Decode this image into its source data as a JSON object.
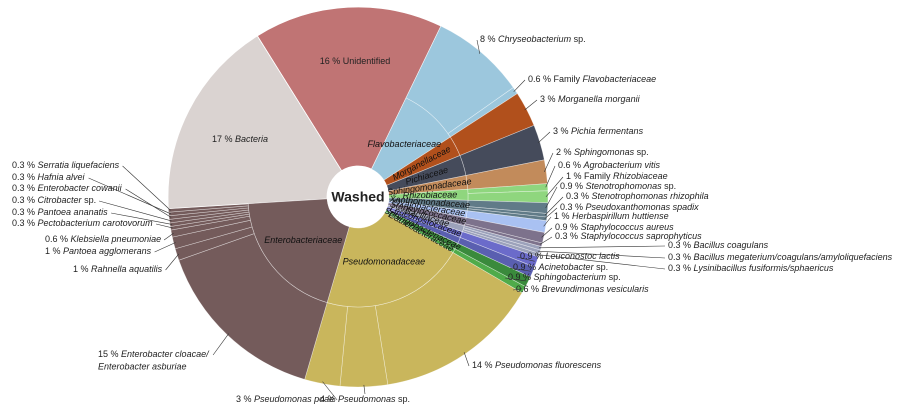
{
  "chart_data": {
    "type": "sunburst",
    "center_label": "Washed",
    "segments": [
      {
        "value": 16,
        "value_label": "16 %",
        "label": "Unidentified",
        "italic": false,
        "color": "#c07474"
      },
      {
        "value": 8,
        "value_label": "8 %",
        "label": "Chryseobacterium",
        "suffix": "sp.",
        "italic": true,
        "family": "Flavobacteriaceae",
        "color": "#9cc7dd"
      },
      {
        "value": 0.6,
        "value_label": "0.6 %",
        "prefix": "Family",
        "label": "Flavobacteriaceae",
        "italic": true,
        "color": "#9cc7dd"
      },
      {
        "value": 3,
        "value_label": "3 %",
        "label": "Morganella morganii",
        "italic": true,
        "family": "Morganellaceae",
        "color": "#b1501c"
      },
      {
        "value": 3,
        "value_label": "3 %",
        "label": "Pichia fermentans",
        "italic": true,
        "family": "Pichiaceae",
        "color": "#454b5b"
      },
      {
        "value": 2,
        "value_label": "2 %",
        "label": "Sphingomonas",
        "suffix": "sp.",
        "italic": true,
        "family": "Sphingomonadaceae",
        "color": "#c28b5b"
      },
      {
        "value": 0.6,
        "value_label": "0.6 %",
        "label": "Agrobacterium vitis",
        "italic": true,
        "family": "Rhizobiaceae",
        "color": "#8fd67e"
      },
      {
        "value": 1,
        "value_label": "1 %",
        "prefix": "Family",
        "label": "Rhizobiaceae",
        "italic": true,
        "color": "#8fd67e"
      },
      {
        "value": 0.9,
        "value_label": "0.9 %",
        "label": "Stenotrophomonas",
        "suffix": "sp.",
        "italic": true,
        "family": "Xanthomonadaceae",
        "color": "#617b88"
      },
      {
        "value": 0.3,
        "value_label": "0.3 %",
        "label": "Stenotrophomonas rhizophila",
        "italic": true,
        "color": "#617b88"
      },
      {
        "value": 0.3,
        "value_label": "0.3 %",
        "label": "Pseudoxanthomonas spadix",
        "italic": true,
        "color": "#617b88"
      },
      {
        "value": 1,
        "value_label": "1 %",
        "label": "Herbaspirillum huttiense",
        "italic": true,
        "family": "Oxalobacteraceae",
        "color": "#a9c1f2"
      },
      {
        "value": 0.9,
        "value_label": "0.9 %",
        "label": "Staphylococcus aureus",
        "italic": true,
        "family": "Staphylococcaceae",
        "color": "#7d728c"
      },
      {
        "value": 0.3,
        "value_label": "0.3 %",
        "label": "Staphylococcus saprophyticus",
        "italic": true,
        "color": "#7d728c"
      },
      {
        "value": 0.3,
        "value_label": "0.3 %",
        "label": "Bacillus coagulans",
        "italic": true,
        "family": "Bacillaceae",
        "color": "#9ca2bb"
      },
      {
        "value": 0.3,
        "value_label": "0.3 %",
        "label": "Bacillus megaterium/coagulans/amyloliquefaciens",
        "italic": true,
        "color": "#9ca2bb"
      },
      {
        "value": 0.3,
        "value_label": "0.3 %",
        "label": "Lysinibacillus fusiformis/sphaericus",
        "italic": true,
        "color": "#9ca2bb"
      },
      {
        "value": 0.9,
        "value_label": "0.9 %",
        "label": "Leuconostoc lactis",
        "italic": true,
        "family": "Leuconostocaceae",
        "color": "#6b6bca"
      },
      {
        "value": 0.9,
        "value_label": "0.9 %",
        "label": "Acinetobacter",
        "suffix": "sp.",
        "italic": true,
        "color": "#5a5fb0"
      },
      {
        "value": 0.9,
        "value_label": "0.9 %",
        "label": "Sphingobacterium",
        "suffix": "sp.",
        "italic": true,
        "family": "Sphingobacteriaceae",
        "color": "#3a8a3c"
      },
      {
        "value": 0.6,
        "value_label": "0.6 %",
        "label": "Brevundimonas vesicularis",
        "italic": true,
        "family": "Caulobacteraceae",
        "color": "#4fab4a"
      },
      {
        "value": 14,
        "value_label": "14 %",
        "label": "Pseudomonas fluorescens",
        "italic": true,
        "family": "Pseudomonadaceae",
        "color": "#c9b65c"
      },
      {
        "value": 4,
        "value_label": "4 %",
        "label": "Pseudomonas",
        "suffix": "sp.",
        "italic": true,
        "color": "#c9b65c"
      },
      {
        "value": 3,
        "value_label": "3 %",
        "label": "Pseudomonas poae",
        "italic": true,
        "color": "#c9b65c"
      },
      {
        "value": 15,
        "value_label": "15 %",
        "label": "Enterobacter cloacae/",
        "label2": "Enterobacter asburiae",
        "italic": true,
        "family": "Enterobacteriaceae",
        "color": "#745b5b"
      },
      {
        "value": 1,
        "value_label": "1 %",
        "label": "Rahnella aquatilis",
        "italic": true,
        "color": "#745b5b"
      },
      {
        "value": 1,
        "value_label": "1 %",
        "label": "Pantoea agglomerans",
        "italic": true,
        "color": "#745b5b"
      },
      {
        "value": 0.6,
        "value_label": "0.6 %",
        "label": "Klebsiella pneumoniae",
        "italic": true,
        "color": "#745b5b"
      },
      {
        "value": 0.3,
        "value_label": "0.3 %",
        "label": "Pectobacterium carotovorum",
        "italic": true,
        "color": "#745b5b"
      },
      {
        "value": 0.3,
        "value_label": "0.3 %",
        "label": "Pantoea ananatis",
        "italic": true,
        "color": "#745b5b"
      },
      {
        "value": 0.3,
        "value_label": "0.3 %",
        "label": "Citrobacter",
        "suffix": "sp.",
        "italic": true,
        "color": "#745b5b"
      },
      {
        "value": 0.3,
        "value_label": "0.3 %",
        "label": "Enterobacter cowanii",
        "italic": true,
        "color": "#745b5b"
      },
      {
        "value": 0.3,
        "value_label": "0.3 %",
        "label": "Hafnia alvei",
        "italic": true,
        "color": "#745b5b"
      },
      {
        "value": 0.3,
        "value_label": "0.3 %",
        "label": "Serratia liquefaciens",
        "italic": true,
        "color": "#745b5b"
      },
      {
        "value": 17,
        "value_label": "17 %",
        "label": "Bacteria",
        "italic": true,
        "color": "#dad3d1"
      }
    ]
  }
}
